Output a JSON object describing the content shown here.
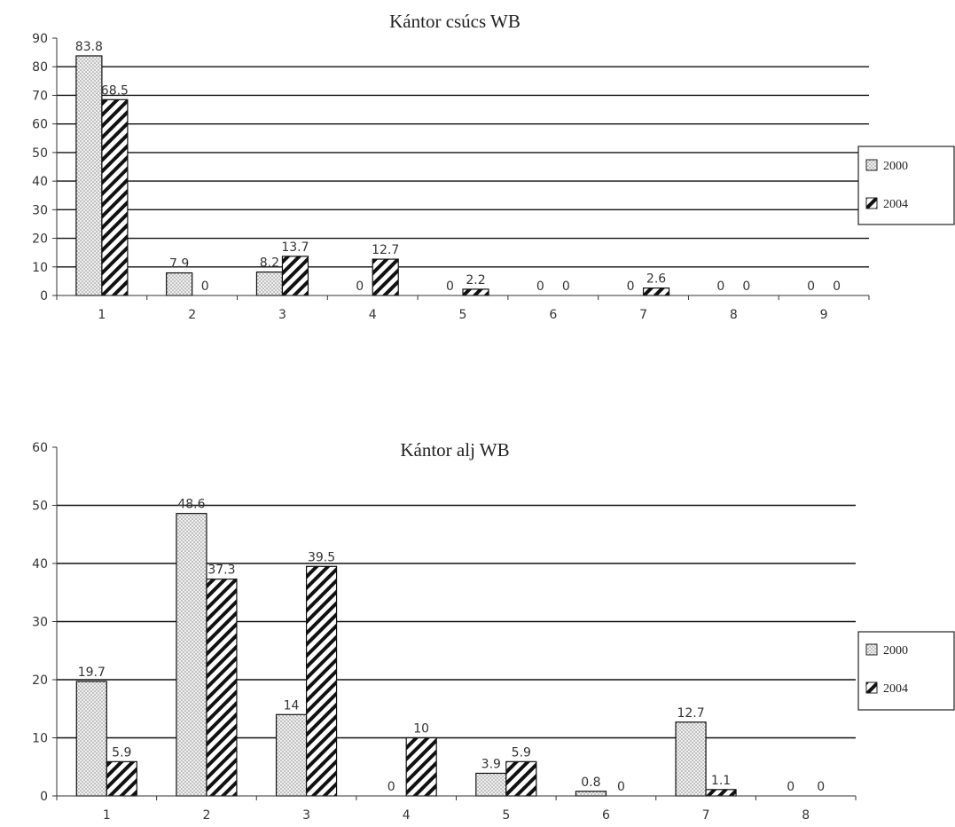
{
  "chart_data": [
    {
      "type": "bar",
      "title": "Kántor csúcs WB",
      "xlabel": "",
      "ylabel": "",
      "categories": [
        "1",
        "2",
        "3",
        "4",
        "5",
        "6",
        "7",
        "8",
        "9"
      ],
      "x_tick_labels": [
        "1",
        "2",
        "3",
        "4",
        "5",
        "6",
        "7",
        "8",
        "9"
      ],
      "ylim": [
        0,
        90
      ],
      "yticks": [
        0,
        10,
        20,
        30,
        40,
        50,
        60,
        70,
        80,
        90
      ],
      "grid": true,
      "legend": "right",
      "series": [
        {
          "name": "2000",
          "values": [
            83.8,
            7.9,
            8.2,
            0,
            0,
            0,
            0,
            0,
            0
          ],
          "pattern": "dots",
          "color": "#e6e6e6"
        },
        {
          "name": "2004",
          "values": [
            68.5,
            0,
            13.7,
            12.7,
            2.2,
            0,
            2.6,
            0,
            0
          ],
          "pattern": "hatch",
          "color": "#111111"
        }
      ],
      "data_labels": [
        [
          "83.8",
          "7.9",
          "8.2",
          "0",
          "0",
          "0",
          "0",
          "0",
          "0"
        ],
        [
          "68.5",
          "0",
          "13.7",
          "12.7",
          "2.2",
          "0",
          "2.6",
          "0",
          "0"
        ]
      ]
    },
    {
      "type": "bar",
      "title": "Kántor alj WB",
      "xlabel": "",
      "ylabel": "",
      "categories": [
        "1",
        "2",
        "3",
        "4",
        "5",
        "6",
        "7",
        "8"
      ],
      "x_tick_labels": [
        "1",
        "2",
        "3",
        "4",
        "5",
        "6",
        "7",
        "8"
      ],
      "ylim": [
        0,
        60
      ],
      "yticks": [
        0,
        10,
        20,
        30,
        40,
        50,
        60
      ],
      "grid": true,
      "legend": "right",
      "series": [
        {
          "name": "2000",
          "values": [
            19.7,
            48.6,
            14,
            0,
            3.9,
            0.8,
            12.7,
            0
          ],
          "pattern": "dots",
          "color": "#e6e6e6"
        },
        {
          "name": "2004",
          "values": [
            5.9,
            37.3,
            39.5,
            10,
            5.9,
            0,
            1.1,
            0
          ],
          "pattern": "hatch",
          "color": "#111111"
        }
      ],
      "data_labels": [
        [
          "19.7",
          "48.6",
          "14",
          "0",
          "3.9",
          "0.8",
          "12.7",
          "0"
        ],
        [
          "5.9",
          "37.3",
          "39.5",
          "10",
          "5.9",
          "0",
          "1.1",
          "0"
        ]
      ]
    }
  ]
}
